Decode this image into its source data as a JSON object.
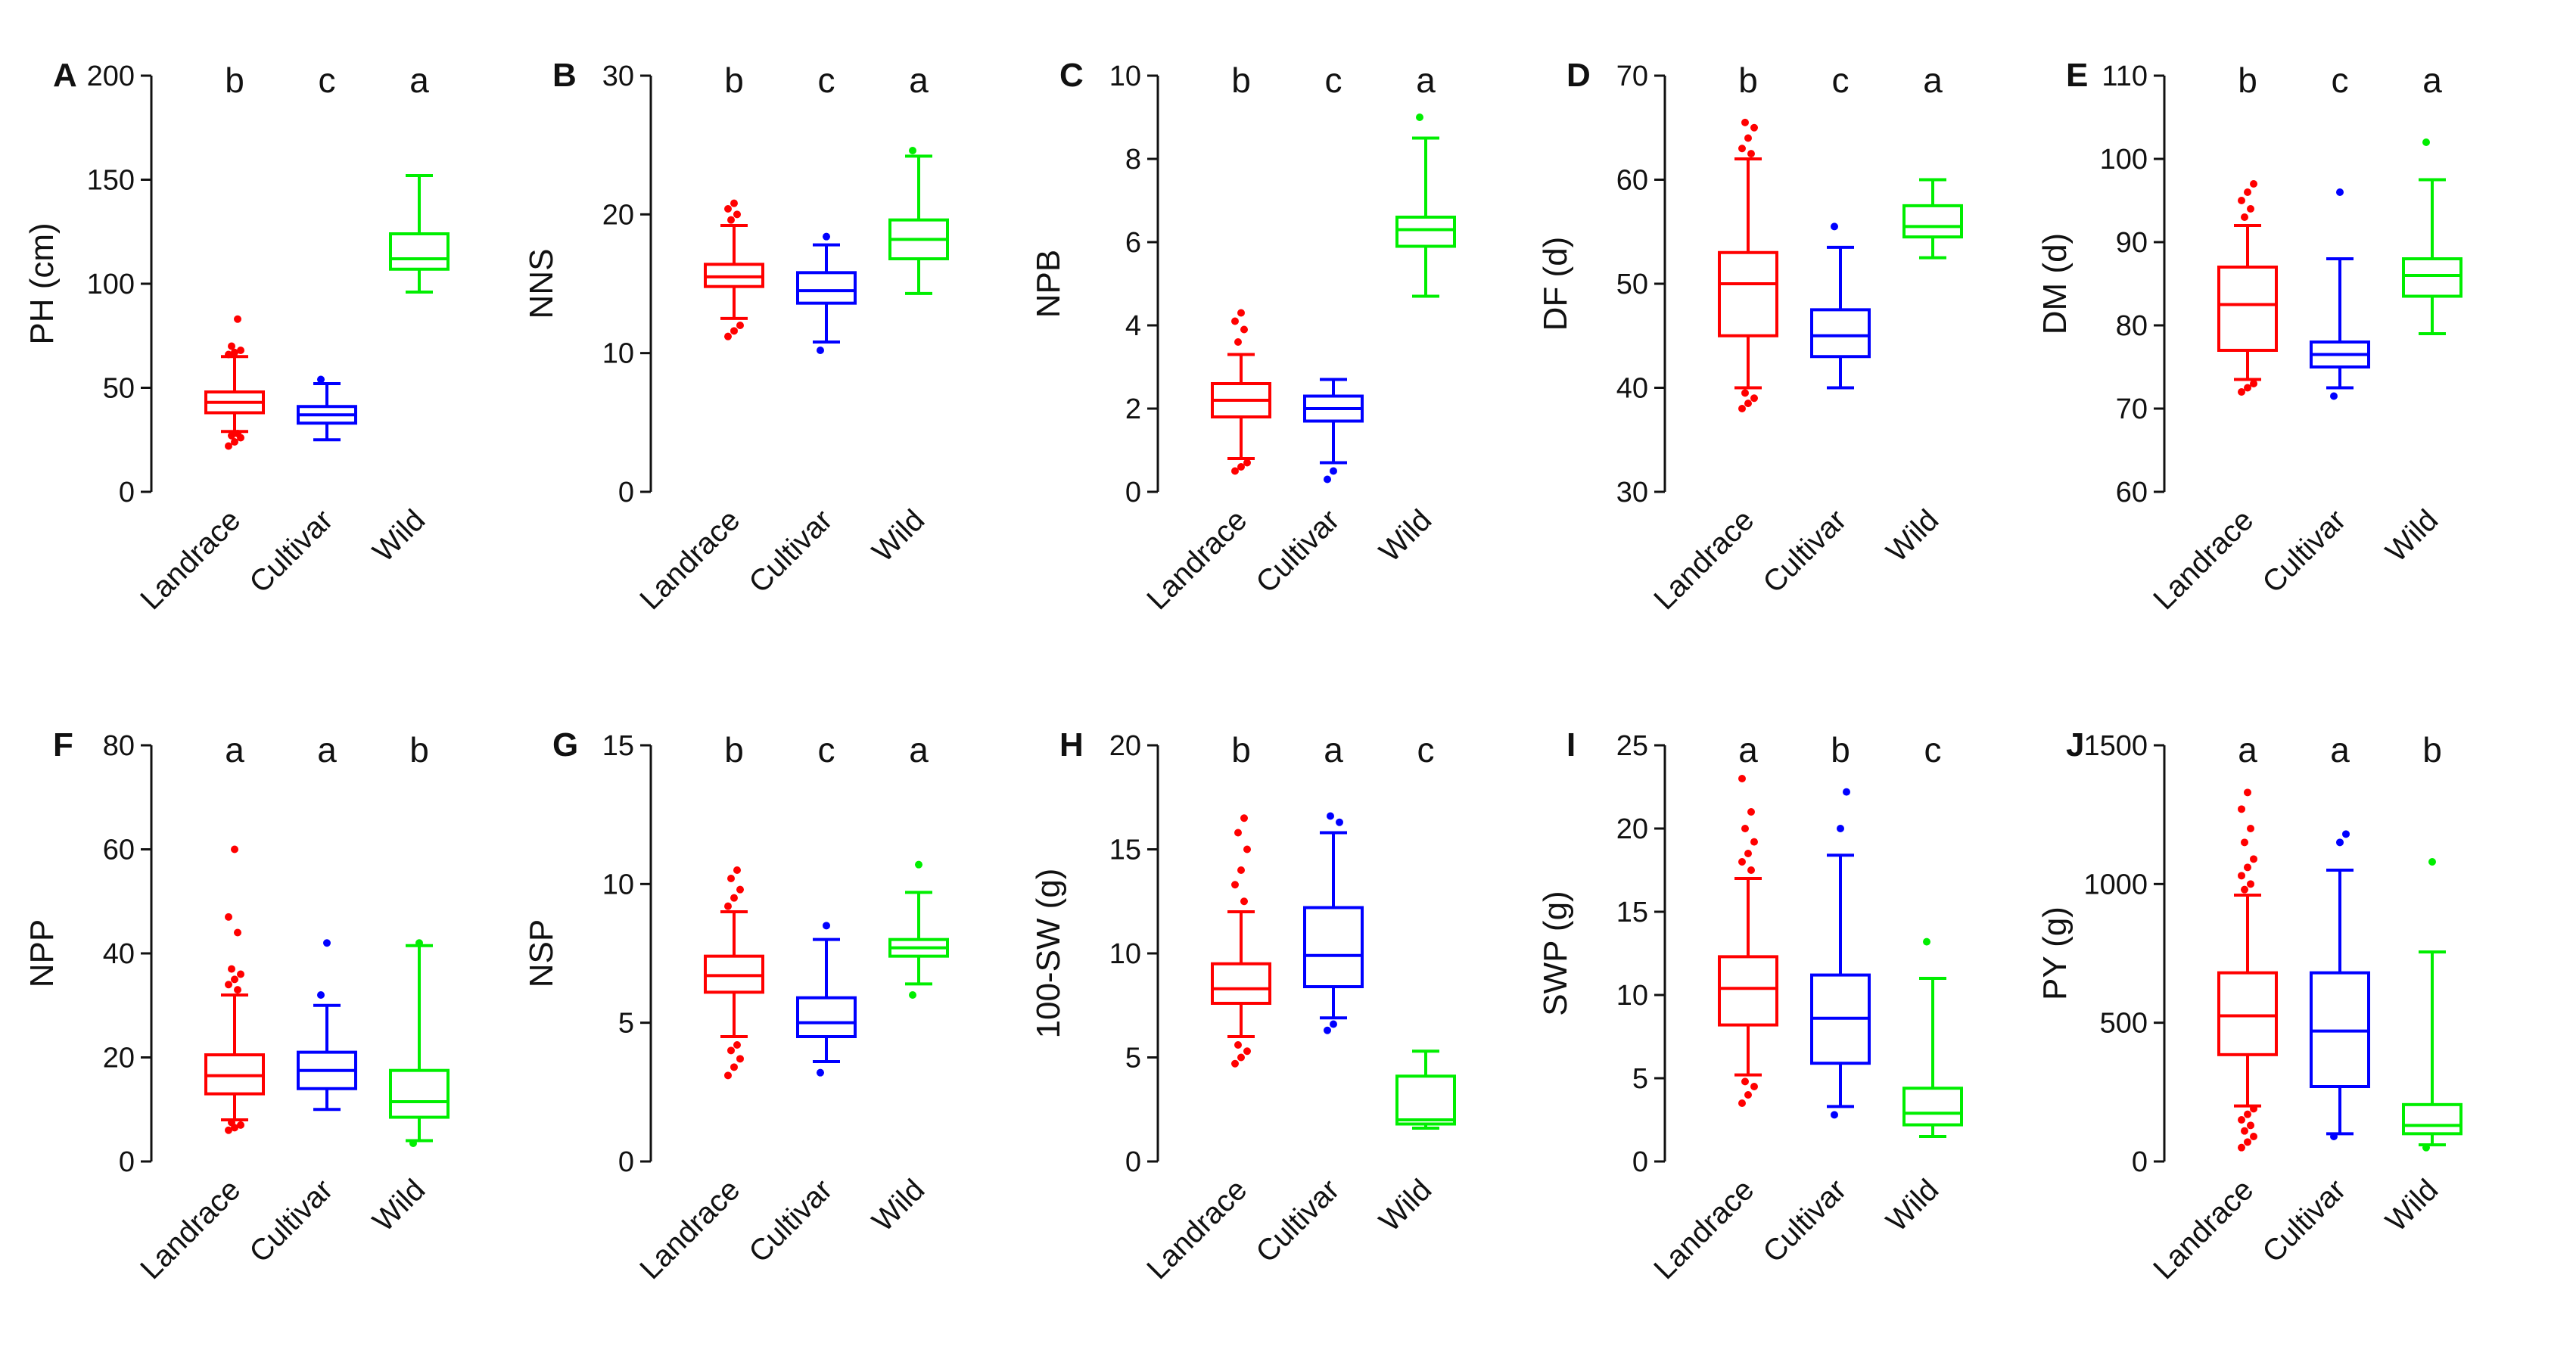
{
  "chart_data": [
    {
      "type": "box",
      "panel": "A",
      "ylabel": "PH (cm)",
      "ylim": [
        0,
        200
      ],
      "yticks": [
        0,
        50,
        100,
        150,
        200
      ],
      "categories": [
        "Landrace",
        "Cultivar",
        "Wild"
      ],
      "significance": [
        "b",
        "c",
        "a"
      ],
      "groups": [
        {
          "name": "Landrace",
          "color": "#ff0000",
          "whisker_low": 29,
          "q1": 38,
          "median": 43,
          "q3": 48,
          "whisker_high": 65,
          "outliers": [
            22,
            24,
            26,
            27,
            28,
            66,
            67,
            68,
            70,
            83
          ]
        },
        {
          "name": "Cultivar",
          "color": "#0000ff",
          "whisker_low": 25,
          "q1": 33,
          "median": 37,
          "q3": 41,
          "whisker_high": 52,
          "outliers": [
            54
          ]
        },
        {
          "name": "Wild",
          "color": "#00ee00",
          "whisker_low": 96,
          "q1": 107,
          "median": 112,
          "q3": 124,
          "whisker_high": 152,
          "outliers": []
        }
      ]
    },
    {
      "type": "box",
      "panel": "B",
      "ylabel": "NNS",
      "ylim": [
        0,
        30
      ],
      "yticks": [
        0,
        10,
        20,
        30
      ],
      "categories": [
        "Landrace",
        "Cultivar",
        "Wild"
      ],
      "significance": [
        "b",
        "c",
        "a"
      ],
      "groups": [
        {
          "name": "Landrace",
          "color": "#ff0000",
          "whisker_low": 12.5,
          "q1": 14.8,
          "median": 15.5,
          "q3": 16.4,
          "whisker_high": 19.2,
          "outliers": [
            11.2,
            11.6,
            12,
            19.6,
            20,
            20.4,
            20.8
          ]
        },
        {
          "name": "Cultivar",
          "color": "#0000ff",
          "whisker_low": 10.8,
          "q1": 13.6,
          "median": 14.5,
          "q3": 15.8,
          "whisker_high": 17.8,
          "outliers": [
            10.2,
            18.4
          ]
        },
        {
          "name": "Wild",
          "color": "#00ee00",
          "whisker_low": 14.3,
          "q1": 16.8,
          "median": 18.2,
          "q3": 19.6,
          "whisker_high": 24.2,
          "outliers": [
            24.6
          ]
        }
      ]
    },
    {
      "type": "box",
      "panel": "C",
      "ylabel": "NPB",
      "ylim": [
        0,
        10
      ],
      "yticks": [
        0,
        2,
        4,
        6,
        8,
        10
      ],
      "categories": [
        "Landrace",
        "Cultivar",
        "Wild"
      ],
      "significance": [
        "b",
        "c",
        "a"
      ],
      "groups": [
        {
          "name": "Landrace",
          "color": "#ff0000",
          "whisker_low": 0.8,
          "q1": 1.8,
          "median": 2.2,
          "q3": 2.6,
          "whisker_high": 3.3,
          "outliers": [
            0.5,
            0.6,
            0.7,
            3.6,
            3.9,
            4.1,
            4.3
          ]
        },
        {
          "name": "Cultivar",
          "color": "#0000ff",
          "whisker_low": 0.7,
          "q1": 1.7,
          "median": 2.0,
          "q3": 2.3,
          "whisker_high": 2.7,
          "outliers": [
            0.3,
            0.5
          ]
        },
        {
          "name": "Wild",
          "color": "#00ee00",
          "whisker_low": 4.7,
          "q1": 5.9,
          "median": 6.3,
          "q3": 6.6,
          "whisker_high": 8.5,
          "outliers": [
            9.0
          ]
        }
      ]
    },
    {
      "type": "box",
      "panel": "D",
      "ylabel": "DF (d)",
      "ylim": [
        30,
        70
      ],
      "yticks": [
        30,
        40,
        50,
        60,
        70
      ],
      "categories": [
        "Landrace",
        "Cultivar",
        "Wild"
      ],
      "significance": [
        "b",
        "c",
        "a"
      ],
      "groups": [
        {
          "name": "Landrace",
          "color": "#ff0000",
          "whisker_low": 40,
          "q1": 45,
          "median": 50,
          "q3": 53,
          "whisker_high": 62,
          "outliers": [
            38,
            38.5,
            39,
            39.5,
            62.5,
            63,
            64,
            65,
            65.5
          ]
        },
        {
          "name": "Cultivar",
          "color": "#0000ff",
          "whisker_low": 40,
          "q1": 43,
          "median": 45,
          "q3": 47.5,
          "whisker_high": 53.5,
          "outliers": [
            55.5
          ]
        },
        {
          "name": "Wild",
          "color": "#00ee00",
          "whisker_low": 52.5,
          "q1": 54.5,
          "median": 55.5,
          "q3": 57.5,
          "whisker_high": 60,
          "outliers": []
        }
      ]
    },
    {
      "type": "box",
      "panel": "E",
      "ylabel": "DM (d)",
      "ylim": [
        60,
        110
      ],
      "yticks": [
        60,
        70,
        80,
        90,
        100,
        110
      ],
      "categories": [
        "Landrace",
        "Cultivar",
        "Wild"
      ],
      "significance": [
        "b",
        "c",
        "a"
      ],
      "groups": [
        {
          "name": "Landrace",
          "color": "#ff0000",
          "whisker_low": 73.5,
          "q1": 77,
          "median": 82.5,
          "q3": 87,
          "whisker_high": 92,
          "outliers": [
            72,
            72.5,
            73,
            93,
            94,
            95,
            96,
            97
          ]
        },
        {
          "name": "Cultivar",
          "color": "#0000ff",
          "whisker_low": 72.5,
          "q1": 75,
          "median": 76.5,
          "q3": 78,
          "whisker_high": 88,
          "outliers": [
            71.5,
            96
          ]
        },
        {
          "name": "Wild",
          "color": "#00ee00",
          "whisker_low": 79,
          "q1": 83.5,
          "median": 86,
          "q3": 88,
          "whisker_high": 97.5,
          "outliers": [
            102
          ]
        }
      ]
    },
    {
      "type": "box",
      "panel": "F",
      "ylabel": "NPP",
      "ylim": [
        0,
        80
      ],
      "yticks": [
        0,
        20,
        40,
        60,
        80
      ],
      "categories": [
        "Landrace",
        "Cultivar",
        "Wild"
      ],
      "significance": [
        "a",
        "a",
        "b"
      ],
      "groups": [
        {
          "name": "Landrace",
          "color": "#ff0000",
          "whisker_low": 8,
          "q1": 13,
          "median": 16.5,
          "q3": 20.5,
          "whisker_high": 32,
          "outliers": [
            6,
            6.5,
            7,
            7.5,
            33,
            34,
            35,
            36,
            37,
            44,
            47,
            60
          ]
        },
        {
          "name": "Cultivar",
          "color": "#0000ff",
          "whisker_low": 10,
          "q1": 14,
          "median": 17.5,
          "q3": 21,
          "whisker_high": 30,
          "outliers": [
            32,
            42
          ]
        },
        {
          "name": "Wild",
          "color": "#00ee00",
          "whisker_low": 4,
          "q1": 8.5,
          "median": 11.5,
          "q3": 17.5,
          "whisker_high": 41.5,
          "outliers": [
            3.5,
            42
          ]
        }
      ]
    },
    {
      "type": "box",
      "panel": "G",
      "ylabel": "NSP",
      "ylim": [
        0,
        15
      ],
      "yticks": [
        0,
        5,
        10,
        15
      ],
      "categories": [
        "Landrace",
        "Cultivar",
        "Wild"
      ],
      "significance": [
        "b",
        "c",
        "a"
      ],
      "groups": [
        {
          "name": "Landrace",
          "color": "#ff0000",
          "whisker_low": 4.5,
          "q1": 6.1,
          "median": 6.7,
          "q3": 7.4,
          "whisker_high": 9.0,
          "outliers": [
            3.1,
            3.4,
            3.7,
            4.0,
            4.2,
            9.2,
            9.5,
            9.8,
            10.2,
            10.5
          ]
        },
        {
          "name": "Cultivar",
          "color": "#0000ff",
          "whisker_low": 3.6,
          "q1": 4.5,
          "median": 5.0,
          "q3": 5.9,
          "whisker_high": 8.0,
          "outliers": [
            3.2,
            8.5
          ]
        },
        {
          "name": "Wild",
          "color": "#00ee00",
          "whisker_low": 6.4,
          "q1": 7.4,
          "median": 7.7,
          "q3": 8.0,
          "whisker_high": 9.7,
          "outliers": [
            6.0,
            10.7
          ]
        }
      ]
    },
    {
      "type": "box",
      "panel": "H",
      "ylabel": "100-SW (g)",
      "ylim": [
        0,
        20
      ],
      "yticks": [
        0,
        5,
        10,
        15,
        20
      ],
      "categories": [
        "Landrace",
        "Cultivar",
        "Wild"
      ],
      "significance": [
        "b",
        "a",
        "c"
      ],
      "groups": [
        {
          "name": "Landrace",
          "color": "#ff0000",
          "whisker_low": 6,
          "q1": 7.6,
          "median": 8.3,
          "q3": 9.5,
          "whisker_high": 12,
          "outliers": [
            4.7,
            5.0,
            5.3,
            5.6,
            12.5,
            13.3,
            14,
            15,
            15.8,
            16.5
          ]
        },
        {
          "name": "Cultivar",
          "color": "#0000ff",
          "whisker_low": 6.9,
          "q1": 8.4,
          "median": 9.9,
          "q3": 12.2,
          "whisker_high": 15.8,
          "outliers": [
            6.3,
            6.6,
            16.3,
            16.6
          ]
        },
        {
          "name": "Wild",
          "color": "#00ee00",
          "whisker_low": 1.6,
          "q1": 1.8,
          "median": 2.0,
          "q3": 4.1,
          "whisker_high": 5.3,
          "outliers": []
        }
      ]
    },
    {
      "type": "box",
      "panel": "I",
      "ylabel": "SWP (g)",
      "ylim": [
        0,
        25
      ],
      "yticks": [
        0,
        5,
        10,
        15,
        20,
        25
      ],
      "categories": [
        "Landrace",
        "Cultivar",
        "Wild"
      ],
      "significance": [
        "a",
        "b",
        "c"
      ],
      "groups": [
        {
          "name": "Landrace",
          "color": "#ff0000",
          "whisker_low": 5.2,
          "q1": 8.2,
          "median": 10.4,
          "q3": 12.3,
          "whisker_high": 17,
          "outliers": [
            3.5,
            4.0,
            4.5,
            4.8,
            17.5,
            18,
            18.5,
            19.2,
            20,
            21,
            23
          ]
        },
        {
          "name": "Cultivar",
          "color": "#0000ff",
          "whisker_low": 3.3,
          "q1": 5.9,
          "median": 8.6,
          "q3": 11.2,
          "whisker_high": 18.4,
          "outliers": [
            2.8,
            20,
            22.2
          ]
        },
        {
          "name": "Wild",
          "color": "#00ee00",
          "whisker_low": 1.5,
          "q1": 2.2,
          "median": 2.9,
          "q3": 4.4,
          "whisker_high": 11.0,
          "outliers": [
            13.2
          ]
        }
      ]
    },
    {
      "type": "box",
      "panel": "J",
      "ylabel": "PY (g)",
      "ylim": [
        0,
        1500
      ],
      "yticks": [
        0,
        500,
        1000,
        1500
      ],
      "categories": [
        "Landrace",
        "Cultivar",
        "Wild"
      ],
      "significance": [
        "a",
        "a",
        "b"
      ],
      "groups": [
        {
          "name": "Landrace",
          "color": "#ff0000",
          "whisker_low": 200,
          "q1": 385,
          "median": 525,
          "q3": 680,
          "whisker_high": 960,
          "outliers": [
            50,
            70,
            90,
            110,
            130,
            150,
            170,
            190,
            980,
            1000,
            1030,
            1060,
            1090,
            1150,
            1200,
            1270,
            1330
          ]
        },
        {
          "name": "Cultivar",
          "color": "#0000ff",
          "whisker_low": 100,
          "q1": 270,
          "median": 470,
          "q3": 680,
          "whisker_high": 1050,
          "outliers": [
            90,
            1150,
            1180
          ]
        },
        {
          "name": "Wild",
          "color": "#00ee00",
          "whisker_low": 60,
          "q1": 100,
          "median": 130,
          "q3": 205,
          "whisker_high": 755,
          "outliers": [
            50,
            1080
          ]
        }
      ]
    }
  ]
}
